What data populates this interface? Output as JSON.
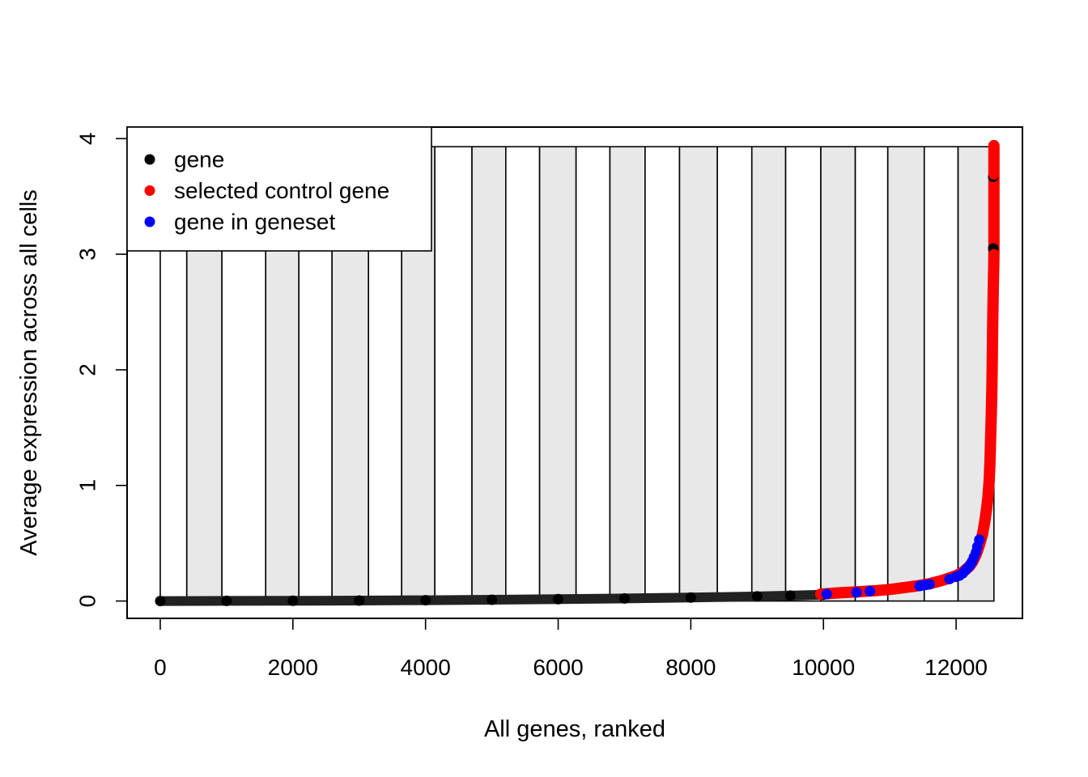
{
  "chart_data": {
    "type": "scatter",
    "title": "",
    "xlabel": "All genes, ranked",
    "ylabel": "Average expression across all cells",
    "xlim": [
      -500,
      13000
    ],
    "ylim": [
      -0.15,
      4.1
    ],
    "xticks": [
      0,
      2000,
      4000,
      6000,
      8000,
      10000,
      12000
    ],
    "xtick_labels": [
      "0",
      "2000",
      "4000",
      "6000",
      "8000",
      "10000",
      "12000"
    ],
    "yticks": [
      0,
      1,
      2,
      3,
      4
    ],
    "ytick_labels": [
      "0",
      "1",
      "2",
      "3",
      "4"
    ],
    "grid": false,
    "legend": {
      "position": "top-left",
      "entries": [
        {
          "label": "gene",
          "color": "#000000"
        },
        {
          "label": "selected control gene",
          "color": "#ff0000"
        },
        {
          "label": "gene in geneset",
          "color": "#0000ff"
        }
      ]
    },
    "bins": {
      "edges": [
        0,
        400,
        930,
        1590,
        2090,
        2590,
        3140,
        3640,
        4140,
        4700,
        5210,
        5720,
        6270,
        6780,
        7310,
        7830,
        8400,
        8920,
        9430,
        9960,
        10480,
        10970,
        11520,
        12030,
        12570
      ],
      "top": 3.93,
      "shaded_fill": "#e8e8e8",
      "plain_fill": "#ffffff",
      "shaded_pattern": "alternate bins shaded, starting from the second bin"
    },
    "series": [
      {
        "name": "gene",
        "color": "#000000",
        "x": [
          0,
          1000,
          2000,
          3000,
          4000,
          5000,
          6000,
          7000,
          8000,
          9000,
          9500,
          10000,
          12560,
          12560
        ],
        "y": [
          0.0,
          0.001,
          0.002,
          0.004,
          0.007,
          0.011,
          0.016,
          0.022,
          0.03,
          0.04,
          0.047,
          0.055,
          3.05,
          3.67
        ]
      },
      {
        "name": "selected control gene",
        "color": "#ff0000",
        "x": [
          9960,
          10200,
          10500,
          10800,
          11000,
          11200,
          11400,
          11600,
          11800,
          11900,
          12000,
          12100,
          12200,
          12250,
          12300,
          12350,
          12400,
          12430,
          12460,
          12480,
          12500,
          12510,
          12520,
          12530,
          12540,
          12545,
          12550,
          12555,
          12560,
          12565,
          12568,
          12570,
          12570,
          12570,
          12570,
          12570
        ],
        "y": [
          0.06,
          0.07,
          0.08,
          0.09,
          0.1,
          0.115,
          0.13,
          0.15,
          0.18,
          0.2,
          0.22,
          0.25,
          0.3,
          0.34,
          0.4,
          0.48,
          0.58,
          0.68,
          0.8,
          0.9,
          1.05,
          1.2,
          1.4,
          1.6,
          1.85,
          2.05,
          2.3,
          2.5,
          2.7,
          2.85,
          2.9,
          3.0,
          3.22,
          3.38,
          3.69,
          3.94
        ]
      },
      {
        "name": "gene in geneset",
        "color": "#0000ff",
        "x": [
          10050,
          10500,
          10700,
          11450,
          11500,
          11550,
          11600,
          11900,
          12000,
          12050,
          12100,
          12150,
          12180,
          12210,
          12240,
          12270,
          12300,
          12320,
          12350
        ],
        "y": [
          0.06,
          0.075,
          0.085,
          0.13,
          0.135,
          0.14,
          0.145,
          0.19,
          0.21,
          0.22,
          0.24,
          0.27,
          0.29,
          0.31,
          0.34,
          0.38,
          0.42,
          0.47,
          0.53
        ]
      }
    ]
  }
}
